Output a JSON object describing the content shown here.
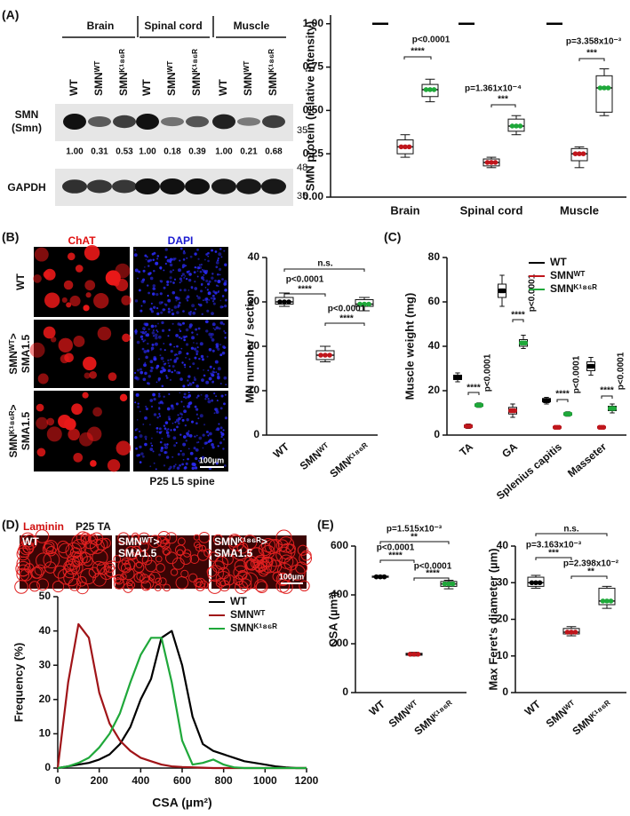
{
  "panels": {
    "A": {
      "label": "(A)",
      "tissues": [
        "Brain",
        "Spinal cord",
        "Muscle"
      ],
      "lanes": [
        "WT",
        "SMNᵂᵀ",
        "SMNᴷ¹⁸⁶ᴿ",
        "WT",
        "SMNᵂᵀ",
        "SMNᴷ¹⁸⁶ᴿ",
        "WT",
        "SMNᵂᵀ",
        "SMNᴷ¹⁸⁶ᴿ"
      ],
      "blot_label": [
        "SMN",
        "(Smn)"
      ],
      "quant": [
        "1.00",
        "0.31",
        "0.53",
        "1.00",
        "0.18",
        "0.39",
        "1.00",
        "0.21",
        "0.68"
      ],
      "loading": "GAPDH",
      "markers": [
        "35",
        "48",
        "35"
      ]
    },
    "B": {
      "label": "(B)",
      "channels": [
        "ChAT",
        "DAPI"
      ],
      "rows": [
        [
          "WT"
        ],
        [
          "SMNᵂᵀ>",
          "SMA1.5"
        ],
        [
          "SMNᴷ¹⁸⁶ᴿ>",
          "SMA1.5"
        ]
      ],
      "scale": "100µm",
      "caption": "P25 L5 spine"
    },
    "C": {
      "label": "(C)"
    },
    "D": {
      "label": "(D)",
      "stain": "Laminin",
      "caption": "P25 TA",
      "images": [
        [
          "WT"
        ],
        [
          "SMNᵂᵀ>",
          "SMA1.5"
        ],
        [
          "SMNᴷ¹⁸⁶ᴿ>",
          "SMA1.5"
        ]
      ],
      "scale": "100µm"
    },
    "E": {
      "label": "(E)"
    }
  },
  "chart_data": [
    {
      "type": "box",
      "ylabel": "SMN protein (relative intensity)",
      "categories": [
        "Brain",
        "Spinal cord",
        "Muscle"
      ],
      "ylim": [
        0,
        1.05
      ],
      "yticks": [
        {
          "value": 0,
          "label": "0.00"
        },
        {
          "value": 0.25,
          "label": "0.25"
        },
        {
          "value": 0.5,
          "label": "0.50"
        },
        {
          "value": 0.75,
          "label": "0.75"
        },
        {
          "value": 1,
          "label": "1.00"
        }
      ],
      "series": [
        {
          "color": "#000000",
          "values": [
            1,
            1,
            1
          ]
        },
        {
          "color": "#c0161c",
          "min": [
            0.23,
            0.17,
            0.17
          ],
          "q1": [
            0.25,
            0.18,
            0.21
          ],
          "median": [
            0.29,
            0.2,
            0.25
          ],
          "q3": [
            0.33,
            0.22,
            0.28
          ],
          "max": [
            0.36,
            0.23,
            0.29
          ]
        },
        {
          "color": "#1fa83a",
          "min": [
            0.55,
            0.36,
            0.47
          ],
          "q1": [
            0.58,
            0.38,
            0.49
          ],
          "median": [
            0.62,
            0.41,
            0.63
          ],
          "q3": [
            0.65,
            0.45,
            0.7
          ],
          "max": [
            0.68,
            0.47,
            0.74
          ]
        }
      ],
      "annotations": [
        "p<0.0001",
        "****",
        "p=1.361x10⁻⁴",
        "***",
        "p=3.358x10⁻³",
        "***"
      ]
    },
    {
      "type": "box",
      "ylabel": "MN number / section",
      "categories": [
        "WT",
        "SMNᵂᵀ",
        "SMNᴷ¹⁸⁶ᴿ"
      ],
      "ylim": [
        0,
        40
      ],
      "yticks": [
        0,
        10,
        20,
        30,
        40
      ],
      "series": [
        {
          "colors": [
            "#000000",
            "#c0161c",
            "#1fa83a"
          ],
          "min": [
            29,
            16.5,
            28
          ],
          "q1": [
            29.5,
            17,
            29
          ],
          "median": [
            30,
            18,
            29.5
          ],
          "q3": [
            31,
            19,
            30.5
          ],
          "max": [
            32,
            20,
            31
          ]
        }
      ],
      "annotations": [
        "n.s.",
        "p<0.0001",
        "****",
        "p<0.0001",
        "****"
      ]
    },
    {
      "type": "box",
      "ylabel": "Muscle weight (mg)",
      "categories": [
        "TA",
        "GA",
        "Splenius capitis",
        "Masseter"
      ],
      "ylim": [
        0,
        80
      ],
      "yticks": [
        0,
        20,
        40,
        60,
        80
      ],
      "legend": "top right",
      "series": [
        {
          "name": "WT",
          "color": "#000000",
          "min": [
            24,
            58,
            14,
            27
          ],
          "q1": [
            25,
            62,
            15,
            29
          ],
          "median": [
            26,
            65,
            15.5,
            31
          ],
          "q3": [
            27,
            68,
            16.5,
            33
          ],
          "max": [
            28,
            72,
            17,
            35
          ]
        },
        {
          "name": "SMNᵂᵀ",
          "color": "#c0161c",
          "min": [
            3,
            8,
            3,
            3
          ],
          "q1": [
            3.5,
            9.5,
            3.2,
            3.2
          ],
          "median": [
            4,
            11,
            3.5,
            3.5
          ],
          "q3": [
            4.5,
            12.5,
            3.8,
            3.8
          ],
          "max": [
            5,
            14,
            4,
            4
          ]
        },
        {
          "name": "SMNᴷ¹⁸⁶ᴿ",
          "color": "#1fa83a",
          "min": [
            12.5,
            39,
            8.5,
            10
          ],
          "q1": [
            13,
            40,
            9,
            11
          ],
          "median": [
            13.5,
            41.5,
            9.5,
            12
          ],
          "q3": [
            14,
            43,
            10,
            13
          ],
          "max": [
            14.5,
            45,
            10.5,
            14
          ]
        }
      ],
      "annotations": [
        "p<0.0001",
        "****",
        "p<0.0001",
        "****",
        "p<0.0001",
        "****",
        "p<0.0001",
        "****"
      ]
    },
    {
      "type": "line",
      "ylabel": "Frequency (%)",
      "xlabel": "CSA (µm²)",
      "xlim": [
        0,
        1200
      ],
      "xticks": [
        0,
        200,
        400,
        600,
        800,
        1000,
        1200
      ],
      "ylim": [
        0,
        50
      ],
      "yticks": [
        0,
        10,
        20,
        30,
        40,
        50
      ],
      "legend": "top right",
      "x": [
        0,
        50,
        100,
        150,
        200,
        250,
        300,
        350,
        400,
        450,
        500,
        550,
        600,
        650,
        700,
        750,
        800,
        850,
        900,
        950,
        1000,
        1050,
        1100,
        1150,
        1200
      ],
      "series": [
        {
          "name": "WT",
          "color": "#000000",
          "values": [
            0,
            0.5,
            1,
            1.5,
            2.5,
            4,
            7,
            12,
            20,
            26,
            38,
            40,
            30,
            15,
            7,
            5,
            4,
            3,
            2,
            1.5,
            1,
            0.5,
            0.2,
            0,
            0
          ]
        },
        {
          "name": "SMNᵂᵀ",
          "color": "#a01418",
          "values": [
            0,
            25,
            42,
            38,
            22,
            13,
            8,
            5,
            3,
            2,
            1,
            0.5,
            0.3,
            0.2,
            0.1,
            0,
            0,
            0,
            0,
            0,
            0,
            0,
            0,
            0,
            0
          ]
        },
        {
          "name": "SMNᴷ¹⁸⁶ᴿ",
          "color": "#1fa83a",
          "values": [
            0,
            0.5,
            1.5,
            3,
            6,
            10,
            16,
            25,
            33,
            38,
            38,
            25,
            8,
            1,
            1.5,
            2.5,
            1,
            0.2,
            0,
            0,
            0,
            0,
            0,
            0,
            0
          ]
        }
      ]
    },
    {
      "type": "box",
      "ylabel": "CSA (µm²)",
      "categories": [
        "WT",
        "SMNᵂᵀ",
        "SMNᴷ¹⁸⁶ᴿ"
      ],
      "ylim": [
        0,
        600
      ],
      "yticks": [
        0,
        200,
        400,
        600
      ],
      "series": [
        {
          "colors": [
            "#000000",
            "#c0161c",
            "#1fa83a"
          ],
          "min": [
            470,
            150,
            425
          ],
          "q1": [
            472,
            153,
            435
          ],
          "median": [
            474,
            157,
            445
          ],
          "q3": [
            477,
            161,
            455
          ],
          "max": [
            480,
            165,
            460
          ]
        }
      ],
      "annotations": [
        "p=1.515x10⁻³",
        "**",
        "p<0.0001",
        "****",
        "p<0.0001",
        "****"
      ]
    },
    {
      "type": "box",
      "ylabel": "Max Feret's diameter (µm)",
      "categories": [
        "WT",
        "SMNᵂᵀ",
        "SMNᴷ¹⁸⁶ᴿ"
      ],
      "ylim": [
        0,
        40
      ],
      "yticks": [
        0,
        10,
        20,
        30,
        40
      ],
      "series": [
        {
          "colors": [
            "#000000",
            "#c0161c",
            "#1fa83a"
          ],
          "min": [
            28.5,
            15.5,
            23
          ],
          "q1": [
            29,
            16,
            24
          ],
          "median": [
            30,
            16.5,
            25
          ],
          "q3": [
            31.5,
            17.5,
            28.5
          ],
          "max": [
            32,
            18,
            29
          ]
        }
      ],
      "annotations": [
        "n.s.",
        "p=3.163x10⁻³",
        "***",
        "p=2.398x10⁻²",
        "**"
      ]
    }
  ]
}
